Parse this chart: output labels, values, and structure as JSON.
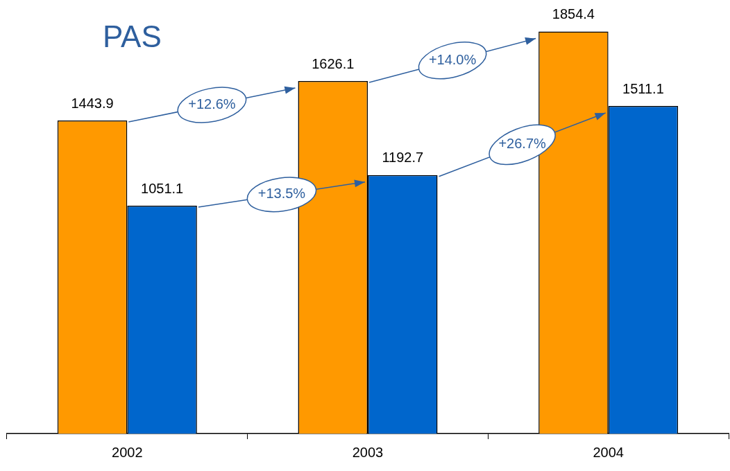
{
  "chart_data": {
    "type": "bar",
    "title": "PAS",
    "categories": [
      "2002",
      "2003",
      "2004"
    ],
    "series": [
      {
        "color": "#ff9900",
        "values": [
          1443.9,
          1626.1,
          1854.4
        ]
      },
      {
        "color": "#0066cc",
        "values": [
          1051.1,
          1192.7,
          1511.1
        ]
      }
    ],
    "data_labels": true,
    "legend": false,
    "grid": false,
    "tick_labels": "x",
    "annotations": [
      "+12.6%",
      "+13.5%",
      "+14.0%",
      "+26.7%"
    ]
  }
}
